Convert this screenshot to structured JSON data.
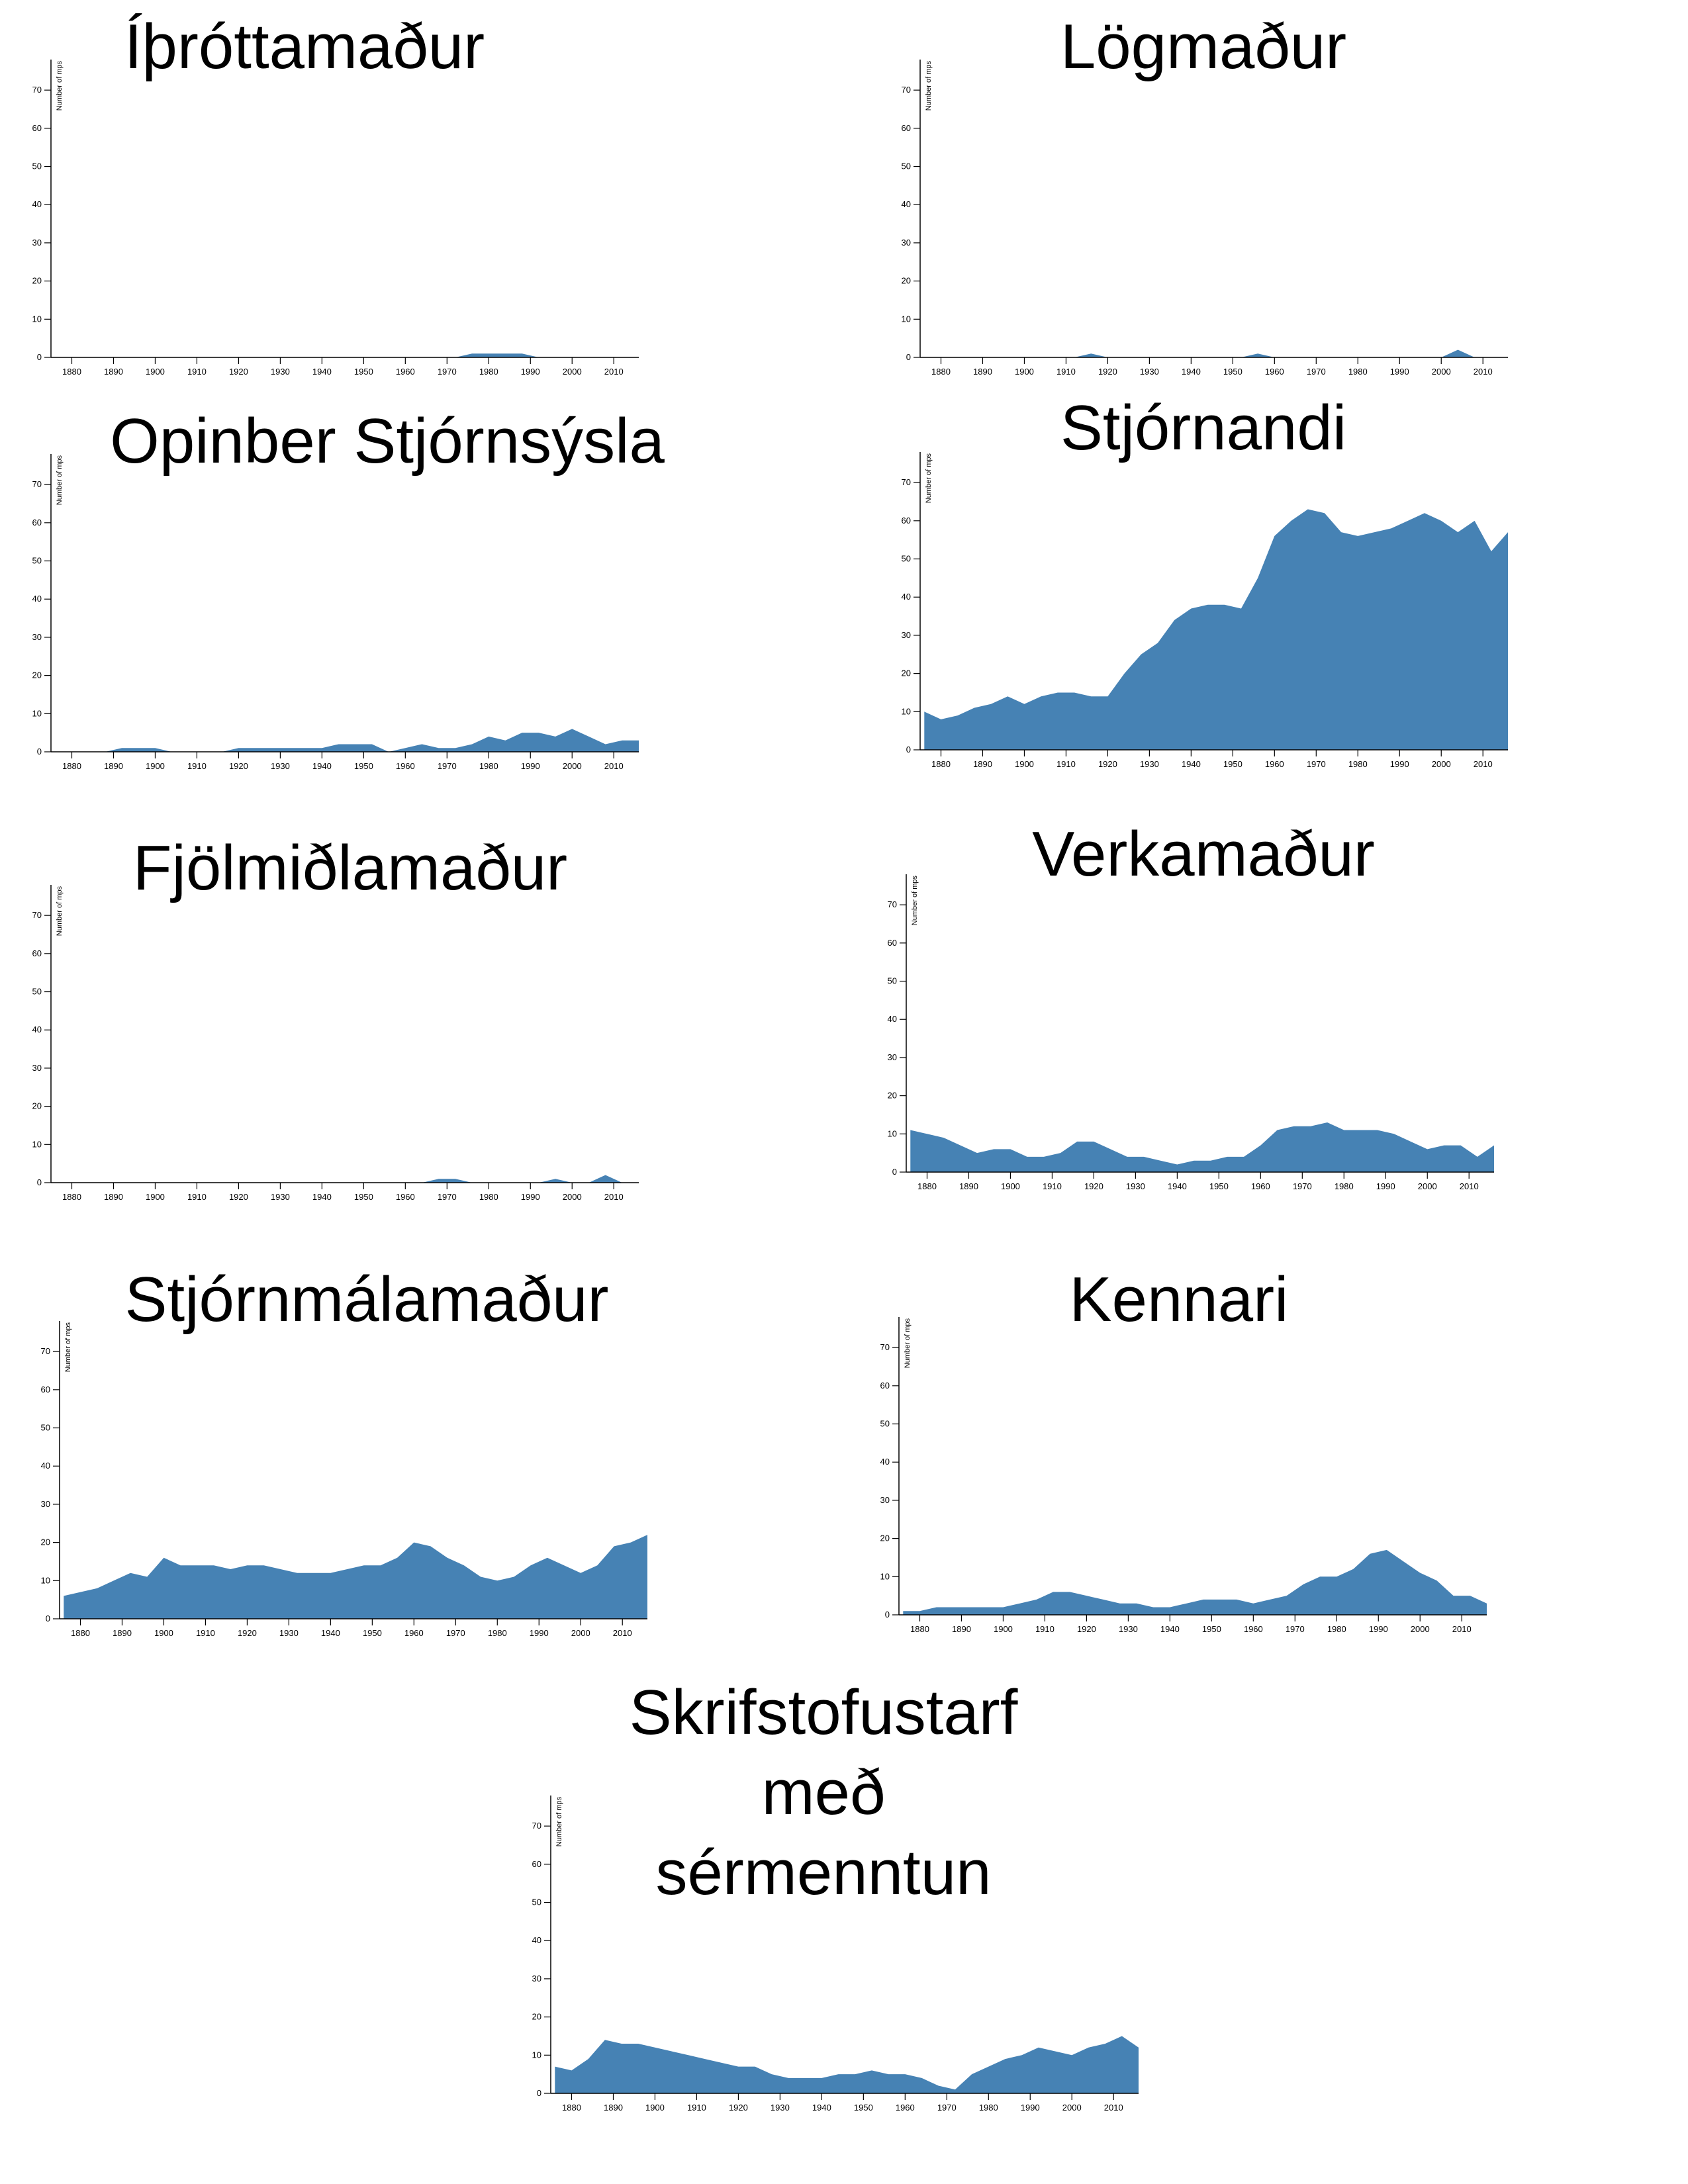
{
  "chart_data": [
    {
      "type": "area",
      "title": "Íþróttamaður",
      "y_label": "Number of mps",
      "color": "#4682b4",
      "x": [
        1876,
        1880,
        1884,
        1888,
        1892,
        1896,
        1900,
        1904,
        1908,
        1912,
        1916,
        1920,
        1924,
        1928,
        1932,
        1936,
        1940,
        1944,
        1948,
        1952,
        1956,
        1960,
        1964,
        1968,
        1972,
        1976,
        1980,
        1984,
        1988,
        1992,
        1996,
        2000,
        2004,
        2008,
        2012,
        2016
      ],
      "values": [
        0,
        0,
        0,
        0,
        0,
        0,
        0,
        0,
        0,
        0,
        0,
        0,
        0,
        0,
        0,
        0,
        0,
        0,
        0,
        0,
        0,
        0,
        0,
        0,
        0,
        1,
        1,
        1,
        1,
        0,
        0,
        0,
        0,
        0,
        0,
        0
      ],
      "xlim": [
        1875,
        2016
      ],
      "ylim": [
        0,
        78
      ],
      "xticks": [
        1880,
        1890,
        1900,
        1910,
        1920,
        1930,
        1940,
        1950,
        1960,
        1970,
        1980,
        1990,
        2000,
        2010
      ],
      "yticks": [
        0,
        10,
        20,
        30,
        40,
        50,
        60,
        70
      ]
    },
    {
      "type": "area",
      "title": "Lögmaður",
      "y_label": "Number of mps",
      "color": "#4682b4",
      "x": [
        1876,
        1880,
        1884,
        1888,
        1892,
        1896,
        1900,
        1904,
        1908,
        1912,
        1916,
        1920,
        1924,
        1928,
        1932,
        1936,
        1940,
        1944,
        1948,
        1952,
        1956,
        1960,
        1964,
        1968,
        1972,
        1976,
        1980,
        1984,
        1988,
        1992,
        1996,
        2000,
        2004,
        2008,
        2012,
        2016
      ],
      "values": [
        0,
        0,
        0,
        0,
        0,
        0,
        0,
        0,
        0,
        0,
        1,
        0,
        0,
        0,
        0,
        0,
        0,
        0,
        0,
        0,
        1,
        0,
        0,
        0,
        0,
        0,
        0,
        0,
        0,
        0,
        0,
        0,
        2,
        0,
        0,
        0
      ],
      "xlim": [
        1875,
        2016
      ],
      "ylim": [
        0,
        78
      ],
      "xticks": [
        1880,
        1890,
        1900,
        1910,
        1920,
        1930,
        1940,
        1950,
        1960,
        1970,
        1980,
        1990,
        2000,
        2010
      ],
      "yticks": [
        0,
        10,
        20,
        30,
        40,
        50,
        60,
        70
      ]
    },
    {
      "type": "area",
      "title": "Opinber Stjórnsýsla",
      "y_label": "Number of mps",
      "color": "#4682b4",
      "x": [
        1876,
        1880,
        1884,
        1888,
        1892,
        1896,
        1900,
        1904,
        1908,
        1912,
        1916,
        1920,
        1924,
        1928,
        1932,
        1936,
        1940,
        1944,
        1948,
        1952,
        1956,
        1960,
        1964,
        1968,
        1972,
        1976,
        1980,
        1984,
        1988,
        1992,
        1996,
        2000,
        2004,
        2008,
        2012,
        2016
      ],
      "values": [
        0,
        0,
        0,
        0,
        1,
        1,
        1,
        0,
        0,
        0,
        0,
        1,
        1,
        1,
        1,
        1,
        1,
        2,
        2,
        2,
        0,
        1,
        2,
        1,
        1,
        2,
        4,
        3,
        5,
        5,
        4,
        6,
        4,
        2,
        3,
        3
      ],
      "xlim": [
        1875,
        2016
      ],
      "ylim": [
        0,
        78
      ],
      "xticks": [
        1880,
        1890,
        1900,
        1910,
        1920,
        1930,
        1940,
        1950,
        1960,
        1970,
        1980,
        1990,
        2000,
        2010
      ],
      "yticks": [
        0,
        10,
        20,
        30,
        40,
        50,
        60,
        70
      ]
    },
    {
      "type": "area",
      "title": "Stjórnandi",
      "y_label": "Number of mps",
      "color": "#4682b4",
      "x": [
        1876,
        1880,
        1884,
        1888,
        1892,
        1896,
        1900,
        1904,
        1908,
        1912,
        1916,
        1920,
        1924,
        1928,
        1932,
        1936,
        1940,
        1944,
        1948,
        1952,
        1956,
        1960,
        1964,
        1968,
        1972,
        1976,
        1980,
        1984,
        1988,
        1992,
        1996,
        2000,
        2004,
        2008,
        2012,
        2016
      ],
      "values": [
        10,
        8,
        9,
        11,
        12,
        14,
        12,
        14,
        15,
        15,
        14,
        14,
        20,
        25,
        28,
        34,
        37,
        38,
        38,
        37,
        45,
        56,
        60,
        63,
        62,
        57,
        56,
        57,
        58,
        60,
        62,
        60,
        57,
        60,
        52,
        57
      ],
      "xlim": [
        1875,
        2016
      ],
      "ylim": [
        0,
        78
      ],
      "xticks": [
        1880,
        1890,
        1900,
        1910,
        1920,
        1930,
        1940,
        1950,
        1960,
        1970,
        1980,
        1990,
        2000,
        2010
      ],
      "yticks": [
        0,
        10,
        20,
        30,
        40,
        50,
        60,
        70
      ]
    },
    {
      "type": "area",
      "title": "Fjölmiðlamaður",
      "y_label": "Number of mps",
      "color": "#4682b4",
      "x": [
        1876,
        1880,
        1884,
        1888,
        1892,
        1896,
        1900,
        1904,
        1908,
        1912,
        1916,
        1920,
        1924,
        1928,
        1932,
        1936,
        1940,
        1944,
        1948,
        1952,
        1956,
        1960,
        1964,
        1968,
        1972,
        1976,
        1980,
        1984,
        1988,
        1992,
        1996,
        2000,
        2004,
        2008,
        2012,
        2016
      ],
      "values": [
        0,
        0,
        0,
        0,
        0,
        0,
        0,
        0,
        0,
        0,
        0,
        0,
        0,
        0,
        0,
        0,
        0,
        0,
        0,
        0,
        0,
        0,
        0,
        1,
        1,
        0,
        0,
        0,
        0,
        0,
        1,
        0,
        0,
        2,
        0,
        0
      ],
      "xlim": [
        1875,
        2016
      ],
      "ylim": [
        0,
        78
      ],
      "xticks": [
        1880,
        1890,
        1900,
        1910,
        1920,
        1930,
        1940,
        1950,
        1960,
        1970,
        1980,
        1990,
        2000,
        2010
      ],
      "yticks": [
        0,
        10,
        20,
        30,
        40,
        50,
        60,
        70
      ]
    },
    {
      "type": "area",
      "title": "Verkamaður",
      "y_label": "Number of mps",
      "color": "#4682b4",
      "x": [
        1876,
        1880,
        1884,
        1888,
        1892,
        1896,
        1900,
        1904,
        1908,
        1912,
        1916,
        1920,
        1924,
        1928,
        1932,
        1936,
        1940,
        1944,
        1948,
        1952,
        1956,
        1960,
        1964,
        1968,
        1972,
        1976,
        1980,
        1984,
        1988,
        1992,
        1996,
        2000,
        2004,
        2008,
        2012,
        2016
      ],
      "values": [
        11,
        10,
        9,
        7,
        5,
        6,
        6,
        4,
        4,
        5,
        8,
        8,
        6,
        4,
        4,
        3,
        2,
        3,
        3,
        4,
        4,
        7,
        11,
        12,
        12,
        13,
        11,
        11,
        11,
        10,
        8,
        6,
        7,
        7,
        4,
        7
      ],
      "xlim": [
        1875,
        2016
      ],
      "ylim": [
        0,
        78
      ],
      "xticks": [
        1880,
        1890,
        1900,
        1910,
        1920,
        1930,
        1940,
        1950,
        1960,
        1970,
        1980,
        1990,
        2000,
        2010
      ],
      "yticks": [
        0,
        10,
        20,
        30,
        40,
        50,
        60,
        70
      ]
    },
    {
      "type": "area",
      "title": "Stjórnmálamaður",
      "y_label": "Number of mps",
      "color": "#4682b4",
      "x": [
        1876,
        1880,
        1884,
        1888,
        1892,
        1896,
        1900,
        1904,
        1908,
        1912,
        1916,
        1920,
        1924,
        1928,
        1932,
        1936,
        1940,
        1944,
        1948,
        1952,
        1956,
        1960,
        1964,
        1968,
        1972,
        1976,
        1980,
        1984,
        1988,
        1992,
        1996,
        2000,
        2004,
        2008,
        2012,
        2016
      ],
      "values": [
        6,
        7,
        8,
        10,
        12,
        11,
        16,
        14,
        14,
        14,
        13,
        14,
        14,
        13,
        12,
        12,
        12,
        13,
        14,
        14,
        16,
        20,
        19,
        16,
        14,
        11,
        10,
        11,
        14,
        16,
        14,
        12,
        14,
        19,
        20,
        22
      ],
      "xlim": [
        1875,
        2016
      ],
      "ylim": [
        0,
        78
      ],
      "xticks": [
        1880,
        1890,
        1900,
        1910,
        1920,
        1930,
        1940,
        1950,
        1960,
        1970,
        1980,
        1990,
        2000,
        2010
      ],
      "yticks": [
        0,
        10,
        20,
        30,
        40,
        50,
        60,
        70
      ]
    },
    {
      "type": "area",
      "title": "Kennari",
      "y_label": "Number of mps",
      "color": "#4682b4",
      "x": [
        1876,
        1880,
        1884,
        1888,
        1892,
        1896,
        1900,
        1904,
        1908,
        1912,
        1916,
        1920,
        1924,
        1928,
        1932,
        1936,
        1940,
        1944,
        1948,
        1952,
        1956,
        1960,
        1964,
        1968,
        1972,
        1976,
        1980,
        1984,
        1988,
        1992,
        1996,
        2000,
        2004,
        2008,
        2012,
        2016
      ],
      "values": [
        1,
        1,
        2,
        2,
        2,
        2,
        2,
        3,
        4,
        6,
        6,
        5,
        4,
        3,
        3,
        2,
        2,
        3,
        4,
        4,
        4,
        3,
        4,
        5,
        8,
        10,
        10,
        12,
        16,
        17,
        14,
        11,
        9,
        5,
        5,
        3
      ],
      "xlim": [
        1875,
        2016
      ],
      "ylim": [
        0,
        78
      ],
      "xticks": [
        1880,
        1890,
        1900,
        1910,
        1920,
        1930,
        1940,
        1950,
        1960,
        1970,
        1980,
        1990,
        2000,
        2010
      ],
      "yticks": [
        0,
        10,
        20,
        30,
        40,
        50,
        60,
        70
      ]
    },
    {
      "type": "area",
      "title": "Skrifstofustarf með sérmenntun",
      "y_label": "Number of mps",
      "color": "#4682b4",
      "x": [
        1876,
        1880,
        1884,
        1888,
        1892,
        1896,
        1900,
        1904,
        1908,
        1912,
        1916,
        1920,
        1924,
        1928,
        1932,
        1936,
        1940,
        1944,
        1948,
        1952,
        1956,
        1960,
        1964,
        1968,
        1972,
        1976,
        1980,
        1984,
        1988,
        1992,
        1996,
        2000,
        2004,
        2008,
        2012,
        2016
      ],
      "values": [
        7,
        6,
        9,
        14,
        13,
        13,
        12,
        11,
        10,
        9,
        8,
        7,
        7,
        5,
        4,
        4,
        4,
        5,
        5,
        6,
        5,
        5,
        4,
        2,
        1,
        5,
        7,
        9,
        10,
        12,
        11,
        10,
        12,
        13,
        15,
        12
      ],
      "xlim": [
        1875,
        2016
      ],
      "ylim": [
        0,
        78
      ],
      "xticks": [
        1880,
        1890,
        1900,
        1910,
        1920,
        1930,
        1940,
        1950,
        1960,
        1970,
        1980,
        1990,
        2000,
        2010
      ],
      "yticks": [
        0,
        10,
        20,
        30,
        40,
        50,
        60,
        70
      ]
    }
  ]
}
